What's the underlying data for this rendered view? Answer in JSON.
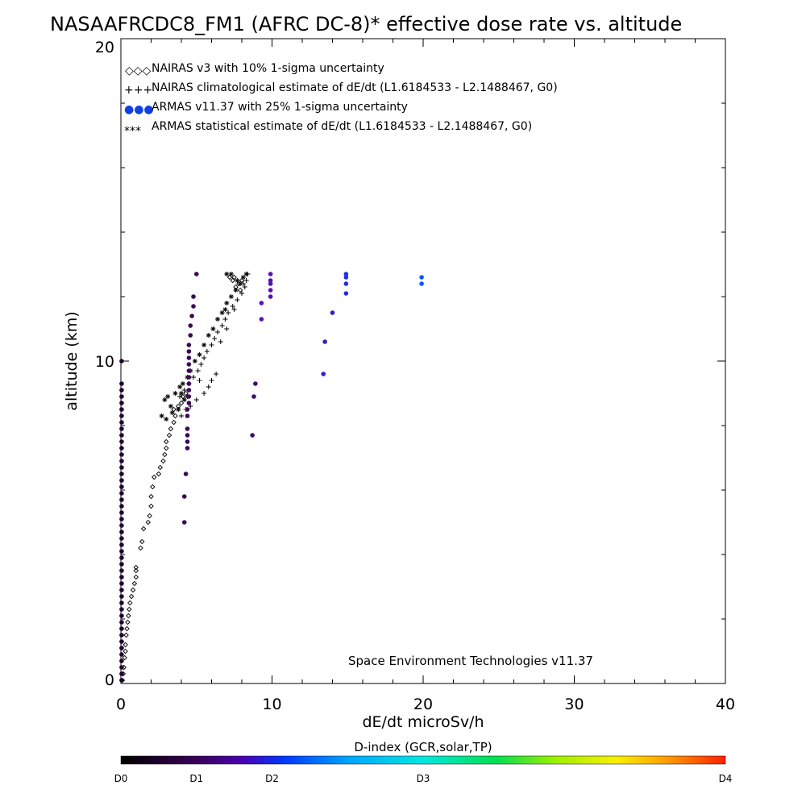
{
  "chart_data": {
    "type": "scatter",
    "title": "NASAAFRCDC8_FM1 (AFRC DC-8)* effective dose rate vs. altitude",
    "xlabel": "dE/dt microSv/h",
    "ylabel": "altitude (km)",
    "xlim": [
      0,
      40
    ],
    "ylim": [
      0,
      20
    ],
    "x_ticks": [
      "0",
      "10",
      "20",
      "30",
      "40"
    ],
    "y_ticks": [
      "0",
      "10",
      "20"
    ],
    "credit": "Space Environment Technologies v11.37",
    "legend_placement": "top-left",
    "legend": [
      {
        "marker": "◇◇◇",
        "text": "NAIRAS v3 with 10% 1-sigma uncertainty"
      },
      {
        "marker": "+++",
        "text": "NAIRAS climatological estimate of dE/dt (L1.6184533 - L2.1488467, G0)"
      },
      {
        "marker": "●●●",
        "text": "ARMAS v11.37 with 25% 1-sigma uncertainty"
      },
      {
        "marker": "***",
        "text": "ARMAS statistical estimate of dE/dt (L1.6184533 - L2.1488467, G0)"
      }
    ],
    "colorbar": {
      "title": "D-index (GCR,solar,TP)",
      "labels": [
        {
          "text": "D0",
          "pos": 0.0
        },
        {
          "text": "D1",
          "pos": 0.125
        },
        {
          "text": "D2",
          "pos": 0.25
        },
        {
          "text": "D3",
          "pos": 0.5
        },
        {
          "text": "D4",
          "pos": 1.0
        }
      ]
    },
    "series": [
      {
        "kind": "nairas",
        "marker": "diamond",
        "points": [
          [
            0.1,
            0.1
          ],
          [
            0.15,
            0.3
          ],
          [
            0.2,
            0.5
          ],
          [
            0.25,
            0.8
          ],
          [
            0.3,
            1.0
          ],
          [
            0.3,
            1.2
          ],
          [
            0.35,
            1.5
          ],
          [
            0.4,
            1.7
          ],
          [
            0.45,
            1.9
          ],
          [
            0.5,
            2.1
          ],
          [
            0.55,
            2.3
          ],
          [
            0.6,
            2.5
          ],
          [
            0.7,
            2.7
          ],
          [
            0.8,
            2.9
          ],
          [
            0.9,
            3.1
          ],
          [
            1.0,
            3.3
          ],
          [
            1.0,
            3.5
          ],
          [
            1.0,
            3.6
          ],
          [
            1.3,
            4.2
          ],
          [
            1.4,
            4.4
          ],
          [
            1.5,
            4.8
          ],
          [
            1.8,
            5.0
          ],
          [
            1.9,
            5.2
          ],
          [
            2.0,
            5.5
          ],
          [
            2.0,
            5.8
          ],
          [
            2.1,
            6.1
          ],
          [
            2.2,
            6.4
          ],
          [
            2.5,
            6.5
          ],
          [
            2.6,
            6.7
          ],
          [
            2.8,
            6.9
          ],
          [
            2.9,
            7.1
          ],
          [
            3.0,
            7.3
          ],
          [
            3.0,
            7.5
          ],
          [
            3.2,
            7.7
          ],
          [
            3.3,
            7.9
          ],
          [
            3.5,
            8.1
          ],
          [
            3.6,
            8.3
          ],
          [
            3.5,
            8.5
          ],
          [
            3.8,
            8.6
          ],
          [
            4.0,
            8.7
          ],
          [
            4.1,
            8.9
          ],
          [
            4.3,
            9.0
          ],
          [
            7.4,
            12.5
          ],
          [
            7.6,
            12.3
          ],
          [
            7.8,
            12.4
          ],
          [
            7.9,
            12.2
          ],
          [
            7.5,
            12.6
          ],
          [
            7.2,
            12.6
          ],
          [
            8.0,
            12.5
          ]
        ]
      },
      {
        "kind": "nairas-clim",
        "marker": "plus",
        "points": [
          [
            3.9,
            8.9
          ],
          [
            4.2,
            9.1
          ],
          [
            4.5,
            9.3
          ],
          [
            4.8,
            9.5
          ],
          [
            5.1,
            9.7
          ],
          [
            5.3,
            9.9
          ],
          [
            5.5,
            10.1
          ],
          [
            5.7,
            10.3
          ],
          [
            6.0,
            10.5
          ],
          [
            6.2,
            10.7
          ],
          [
            6.4,
            10.9
          ],
          [
            6.7,
            11.1
          ],
          [
            6.9,
            11.3
          ],
          [
            7.1,
            11.5
          ],
          [
            7.4,
            11.7
          ],
          [
            7.7,
            11.9
          ],
          [
            8.0,
            12.1
          ],
          [
            8.2,
            12.3
          ],
          [
            8.3,
            12.5
          ],
          [
            8.4,
            12.7
          ],
          [
            5.0,
            8.8
          ],
          [
            5.5,
            9.0
          ],
          [
            5.8,
            9.2
          ],
          [
            6.0,
            9.4
          ],
          [
            4.3,
            8.5
          ],
          [
            4.0,
            8.3
          ],
          [
            4.6,
            8.6
          ],
          [
            6.3,
            9.6
          ],
          [
            5.2,
            9.4
          ],
          [
            6.6,
            10.6
          ],
          [
            7.0,
            11.0
          ],
          [
            7.5,
            11.6
          ],
          [
            8.1,
            12.4
          ]
        ]
      },
      {
        "kind": "armas-stat",
        "marker": "star",
        "points": [
          [
            2.9,
            8.8
          ],
          [
            3.1,
            8.9
          ],
          [
            3.3,
            8.6
          ],
          [
            3.6,
            9.0
          ],
          [
            3.9,
            9.2
          ],
          [
            4.1,
            9.3
          ],
          [
            4.4,
            9.5
          ],
          [
            4.6,
            9.7
          ],
          [
            4.9,
            10.0
          ],
          [
            5.2,
            10.2
          ],
          [
            5.5,
            10.5
          ],
          [
            5.8,
            10.8
          ],
          [
            6.1,
            11.0
          ],
          [
            6.4,
            11.3
          ],
          [
            6.7,
            11.5
          ],
          [
            7.0,
            11.8
          ],
          [
            7.3,
            12.0
          ],
          [
            7.6,
            12.2
          ],
          [
            7.9,
            12.4
          ],
          [
            8.1,
            12.6
          ],
          [
            8.3,
            12.7
          ],
          [
            7.0,
            12.7
          ],
          [
            7.3,
            12.7
          ],
          [
            2.7,
            8.3
          ],
          [
            3.0,
            8.2
          ],
          [
            3.4,
            8.4
          ],
          [
            3.8,
            8.5
          ],
          [
            4.2,
            8.8
          ],
          [
            4.4,
            8.9
          ],
          [
            4.0,
            9.0
          ],
          [
            6.9,
            11.6
          ],
          [
            7.7,
            12.5
          ]
        ]
      },
      {
        "kind": "armas",
        "marker": "dot",
        "points": [
          [
            0.05,
            9.3
          ],
          [
            0.05,
            9.1
          ],
          [
            0.05,
            8.9
          ],
          [
            0.05,
            8.7
          ],
          [
            0.05,
            8.5
          ],
          [
            0.05,
            8.3
          ],
          [
            0.05,
            8.1
          ],
          [
            0.05,
            7.9
          ],
          [
            0.05,
            7.7
          ],
          [
            0.05,
            7.5
          ],
          [
            0.05,
            7.3
          ],
          [
            0.05,
            7.1
          ],
          [
            0.05,
            6.9
          ],
          [
            0.05,
            6.7
          ],
          [
            0.05,
            6.5
          ],
          [
            0.05,
            6.3
          ],
          [
            0.05,
            6.1
          ],
          [
            0.05,
            5.9
          ],
          [
            0.05,
            5.7
          ],
          [
            0.05,
            5.5
          ],
          [
            0.05,
            5.3
          ],
          [
            0.05,
            5.1
          ],
          [
            0.05,
            4.9
          ],
          [
            0.05,
            4.7
          ],
          [
            0.05,
            4.5
          ],
          [
            0.05,
            4.3
          ],
          [
            0.05,
            4.1
          ],
          [
            0.05,
            3.9
          ],
          [
            0.05,
            3.7
          ],
          [
            0.05,
            3.5
          ],
          [
            0.05,
            3.3
          ],
          [
            0.05,
            3.1
          ],
          [
            0.05,
            2.9
          ],
          [
            0.05,
            2.7
          ],
          [
            0.05,
            2.5
          ],
          [
            0.05,
            2.3
          ],
          [
            0.05,
            2.1
          ],
          [
            0.05,
            1.9
          ],
          [
            0.05,
            1.7
          ],
          [
            0.05,
            1.5
          ],
          [
            0.05,
            1.3
          ],
          [
            0.05,
            1.1
          ],
          [
            0.05,
            0.9
          ],
          [
            0.05,
            0.7
          ],
          [
            0.05,
            0.5
          ],
          [
            0.05,
            0.3
          ],
          [
            0.05,
            0.1
          ],
          [
            0.05,
            10.0
          ],
          [
            4.2,
            5.0
          ],
          [
            4.2,
            5.8
          ],
          [
            4.3,
            6.5
          ],
          [
            4.4,
            7.3
          ],
          [
            4.4,
            7.5
          ],
          [
            4.4,
            7.7
          ],
          [
            4.4,
            7.9
          ],
          [
            4.4,
            8.3
          ],
          [
            4.4,
            8.5
          ],
          [
            4.5,
            8.7
          ],
          [
            4.5,
            8.9
          ],
          [
            4.5,
            9.1
          ],
          [
            4.5,
            9.3
          ],
          [
            4.5,
            9.5
          ],
          [
            4.5,
            9.7
          ],
          [
            4.5,
            9.9
          ],
          [
            4.5,
            10.1
          ],
          [
            4.5,
            10.3
          ],
          [
            4.5,
            10.5
          ],
          [
            4.6,
            10.8
          ],
          [
            4.6,
            11.1
          ],
          [
            4.7,
            11.4
          ],
          [
            4.8,
            11.7
          ],
          [
            4.8,
            12.0
          ],
          [
            5.0,
            12.7
          ],
          [
            8.7,
            7.7
          ],
          [
            8.8,
            8.9
          ],
          [
            8.9,
            9.3
          ],
          [
            9.3,
            11.3
          ],
          [
            9.3,
            11.8
          ],
          [
            9.9,
            12.0
          ],
          [
            9.9,
            12.2
          ],
          [
            9.9,
            12.4
          ],
          [
            9.9,
            12.7
          ],
          [
            9.9,
            12.5
          ],
          [
            13.4,
            9.6
          ],
          [
            13.5,
            10.6
          ],
          [
            14.0,
            11.5
          ],
          [
            14.9,
            12.1
          ],
          [
            14.9,
            12.4
          ],
          [
            14.9,
            12.7
          ],
          [
            14.9,
            12.6
          ],
          [
            19.9,
            12.4
          ],
          [
            19.9,
            12.6
          ]
        ]
      }
    ]
  }
}
